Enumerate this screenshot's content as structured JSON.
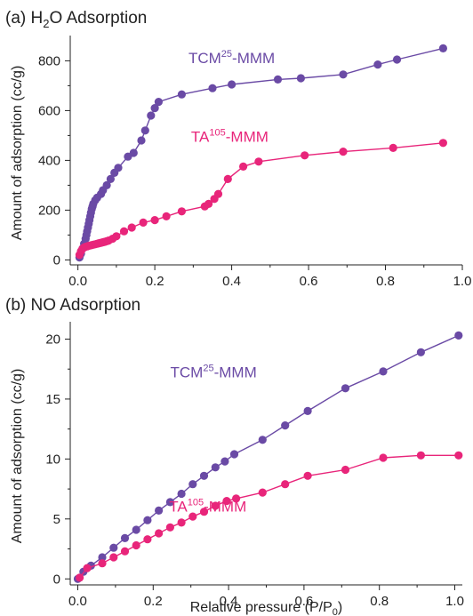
{
  "chart_data": [
    {
      "type": "scatter",
      "panel_label": "(a)",
      "title": "H",
      "title_sub": "2",
      "title_rest": "O Adsorption",
      "ylabel": "Amount of adsorption (cc/g)",
      "xlabel": "",
      "xlim": [
        -0.02,
        1.0
      ],
      "ylim": [
        -20,
        880
      ],
      "xticks": [
        0.0,
        0.2,
        0.4,
        0.6,
        0.8,
        1.0
      ],
      "xtick_labels": [
        "0.0",
        "0.2",
        "0.4",
        "0.6",
        "0.8",
        "1.0"
      ],
      "yticks": [
        0,
        200,
        400,
        600,
        800
      ],
      "ytick_labels": [
        "0",
        "200",
        "400",
        "600",
        "800"
      ],
      "series": [
        {
          "label": {
            "base": "TCM",
            "sup": "25",
            "rest": "-MMM"
          },
          "label_at": [
            0.4,
            790
          ],
          "color": "#6a4aa5",
          "x": [
            0.004,
            0.008,
            0.012,
            0.016,
            0.02,
            0.022,
            0.024,
            0.026,
            0.028,
            0.03,
            0.032,
            0.034,
            0.036,
            0.038,
            0.04,
            0.045,
            0.05,
            0.06,
            0.065,
            0.075,
            0.085,
            0.095,
            0.105,
            0.13,
            0.145,
            0.165,
            0.175,
            0.19,
            0.2,
            0.21,
            0.27,
            0.35,
            0.4,
            0.52,
            0.58,
            0.69,
            0.78,
            0.83,
            0.95
          ],
          "y": [
            10,
            25,
            45,
            65,
            85,
            100,
            115,
            130,
            145,
            160,
            175,
            190,
            205,
            215,
            225,
            240,
            250,
            265,
            280,
            300,
            325,
            350,
            370,
            415,
            430,
            480,
            520,
            580,
            610,
            635,
            665,
            690,
            705,
            725,
            730,
            745,
            785,
            805,
            850
          ]
        },
        {
          "label": {
            "base": "TA",
            "sup": "105",
            "rest": "-MMM"
          },
          "label_at": [
            0.395,
            475
          ],
          "color": "#e8257a",
          "x": [
            0.004,
            0.008,
            0.012,
            0.016,
            0.02,
            0.025,
            0.03,
            0.035,
            0.04,
            0.045,
            0.05,
            0.055,
            0.06,
            0.065,
            0.07,
            0.075,
            0.08,
            0.09,
            0.1,
            0.12,
            0.14,
            0.17,
            0.2,
            0.23,
            0.27,
            0.33,
            0.34,
            0.355,
            0.365,
            0.39,
            0.43,
            0.47,
            0.59,
            0.69,
            0.82,
            0.95
          ],
          "y": [
            20,
            35,
            45,
            50,
            53,
            55,
            57,
            59,
            61,
            63,
            65,
            67,
            69,
            71,
            73,
            75,
            78,
            85,
            95,
            115,
            130,
            150,
            160,
            175,
            195,
            215,
            225,
            245,
            265,
            325,
            375,
            395,
            420,
            435,
            450,
            470
          ]
        }
      ]
    },
    {
      "type": "scatter",
      "panel_label": "(b)",
      "title": "NO Adsorption",
      "ylabel": "Amount of adsorption (cc/g)",
      "xlabel": "Relative pressure (P/P",
      "xlabel_sub": "0",
      "xlabel_end": ")",
      "xlim": [
        -0.02,
        1.02
      ],
      "ylim": [
        -0.5,
        21
      ],
      "xticks": [
        0.0,
        0.2,
        0.4,
        0.6,
        0.8,
        1.0
      ],
      "xtick_labels": [
        "0.0",
        "0.2",
        "0.4",
        "0.6",
        "0.8",
        "1.0"
      ],
      "yticks": [
        0,
        5,
        10,
        15,
        20
      ],
      "ytick_labels": [
        "0",
        "5",
        "10",
        "15",
        "20"
      ],
      "series": [
        {
          "label": {
            "base": "TCM",
            "sup": "25",
            "rest": "-MMM"
          },
          "label_at": [
            0.36,
            16.8
          ],
          "color": "#6a4aa5",
          "x": [
            0.0,
            0.015,
            0.035,
            0.065,
            0.095,
            0.125,
            0.155,
            0.185,
            0.215,
            0.245,
            0.275,
            0.305,
            0.335,
            0.365,
            0.39,
            0.415,
            0.49,
            0.55,
            0.61,
            0.71,
            0.81,
            0.91,
            1.01
          ],
          "y": [
            0.0,
            0.6,
            1.1,
            1.8,
            2.6,
            3.4,
            4.1,
            4.9,
            5.7,
            6.4,
            7.1,
            7.9,
            8.6,
            9.3,
            9.8,
            10.4,
            11.6,
            12.8,
            14.0,
            15.9,
            17.3,
            18.9,
            20.3
          ]
        },
        {
          "label": {
            "base": "TA",
            "sup": "105",
            "rest": "-MMM"
          },
          "label_at": [
            0.345,
            5.6
          ],
          "color": "#e8257a",
          "x": [
            0.005,
            0.025,
            0.065,
            0.095,
            0.125,
            0.155,
            0.185,
            0.215,
            0.245,
            0.275,
            0.305,
            0.335,
            0.365,
            0.395,
            0.42,
            0.49,
            0.55,
            0.61,
            0.71,
            0.81,
            0.91,
            1.01
          ],
          "y": [
            0.1,
            0.9,
            1.3,
            1.8,
            2.3,
            2.8,
            3.3,
            3.8,
            4.3,
            4.7,
            5.2,
            5.6,
            6.1,
            6.5,
            6.7,
            7.2,
            7.9,
            8.6,
            9.1,
            10.1,
            10.3,
            10.3
          ]
        }
      ]
    }
  ]
}
